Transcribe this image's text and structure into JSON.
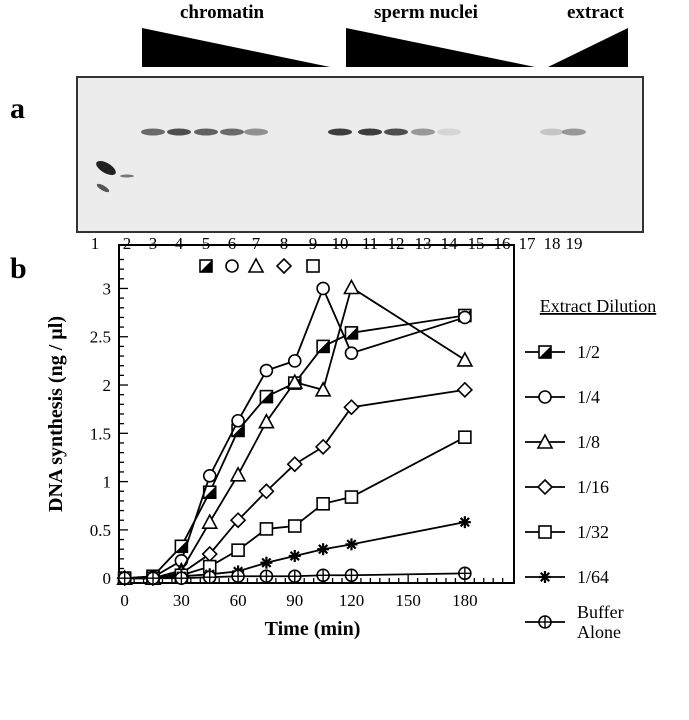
{
  "panel_a": {
    "label": "a",
    "groups": [
      "chromatin",
      "sperm nuclei",
      "extract"
    ],
    "lanes": [
      "1",
      "2",
      "3",
      "4",
      "5",
      "6",
      "7",
      "8",
      "9",
      "10",
      "11",
      "12",
      "13",
      "14",
      "15",
      "16",
      "17",
      "18",
      "19"
    ],
    "lane_symbols": [
      "half-filled-square-icon",
      "circle-icon",
      "triangle-icon",
      "diamond-icon",
      "square-icon"
    ]
  },
  "panel_b": {
    "label": "b"
  },
  "chart_data": {
    "type": "line",
    "xlabel": "Time (min)",
    "ylabel": "DNA synthesis  (ng / µl)",
    "xlim": [
      -3,
      206
    ],
    "ylim": [
      -0.05,
      3.45
    ],
    "xticks": [
      0,
      30,
      60,
      90,
      120,
      150,
      180
    ],
    "yticks": [
      0,
      0.5,
      1,
      1.5,
      2,
      2.5,
      3
    ],
    "ytick_labels": [
      "0",
      "0.5",
      "1",
      "1.5",
      "2",
      "2.5",
      "3"
    ],
    "legend_title": "Extract Dilution",
    "legend_placement": "right",
    "x": [
      0,
      15,
      30,
      45,
      60,
      75,
      90,
      105,
      120,
      180
    ],
    "series": [
      {
        "name": "1/2",
        "marker": "half-square",
        "values": [
          0,
          0.02,
          0.33,
          0.89,
          1.53,
          1.88,
          2.02,
          2.4,
          2.54,
          2.72
        ]
      },
      {
        "name": "1/4",
        "marker": "circle",
        "values": [
          0,
          0.01,
          0.18,
          1.06,
          1.63,
          2.15,
          2.25,
          3.0,
          2.33,
          2.7
        ]
      },
      {
        "name": "1/8",
        "marker": "triangle",
        "values": [
          0,
          0,
          0.08,
          0.58,
          1.07,
          1.62,
          2.03,
          1.95,
          3.01,
          2.26
        ]
      },
      {
        "name": "1/16",
        "marker": "diamond",
        "values": [
          0,
          0,
          0.05,
          0.25,
          0.6,
          0.9,
          1.18,
          1.36,
          1.77,
          1.95
        ]
      },
      {
        "name": "1/32",
        "marker": "square",
        "values": [
          0,
          0,
          0.03,
          0.12,
          0.29,
          0.51,
          0.54,
          0.77,
          0.84,
          1.46
        ]
      },
      {
        "name": "1/64",
        "marker": "asterisk",
        "values": [
          0,
          0,
          0.02,
          0.04,
          0.07,
          0.16,
          0.23,
          0.3,
          0.35,
          0.58
        ]
      },
      {
        "name": "Buffer Alone",
        "marker": "crossed-circle",
        "values": [
          0,
          0,
          0,
          0.01,
          0.02,
          0.02,
          0.02,
          0.03,
          0.03,
          0.05
        ]
      }
    ]
  }
}
